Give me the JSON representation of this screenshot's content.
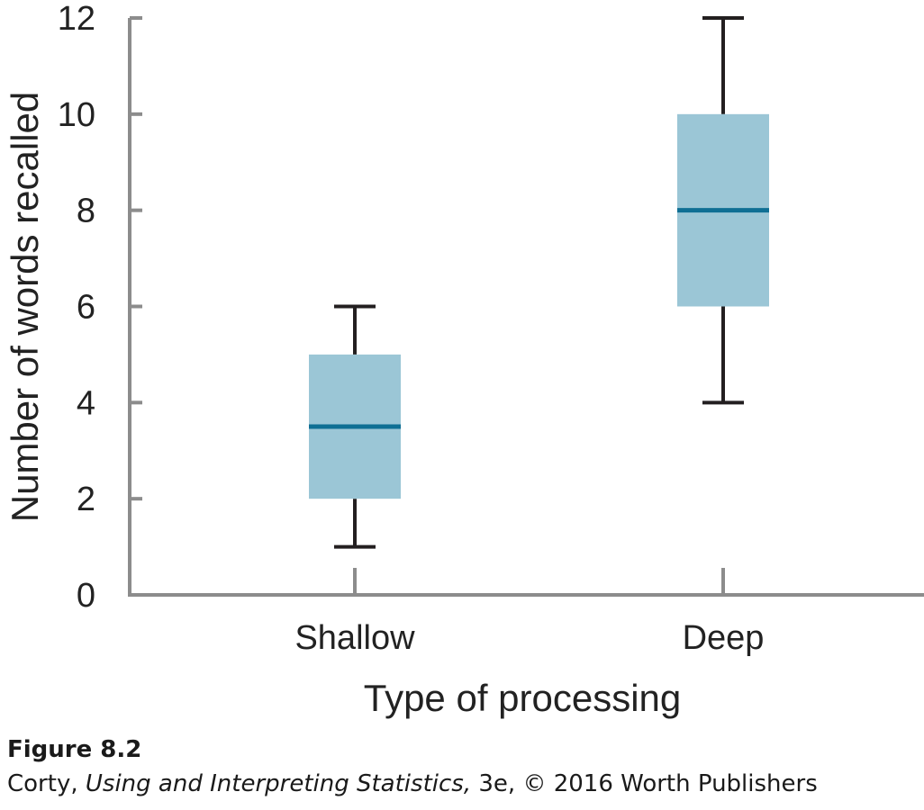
{
  "chart_data": {
    "type": "box",
    "categories": [
      "Shallow",
      "Deep"
    ],
    "boxes": [
      {
        "category": "Shallow",
        "min": 1,
        "q1": 2,
        "median": 3.5,
        "q3": 5,
        "max": 6
      },
      {
        "category": "Deep",
        "min": 4,
        "q1": 6,
        "median": 8,
        "q3": 10,
        "max": 12
      }
    ],
    "xlabel": "Type of processing",
    "ylabel": "Number of words recalled",
    "ylim": [
      0,
      12
    ],
    "yticks": [
      0,
      2,
      4,
      6,
      8,
      10,
      12
    ],
    "grid": false,
    "colors": {
      "box_fill": "#9bc6d6",
      "median": "#0f6f94",
      "whisker": "#231f20",
      "axis": "#8c8c8c"
    }
  },
  "caption": {
    "figure_label": "Figure 8.2",
    "credit_author": "Corty, ",
    "credit_book": "Using and Interpreting Statistics,",
    "credit_rest": " 3e, © 2016 Worth Publishers"
  }
}
